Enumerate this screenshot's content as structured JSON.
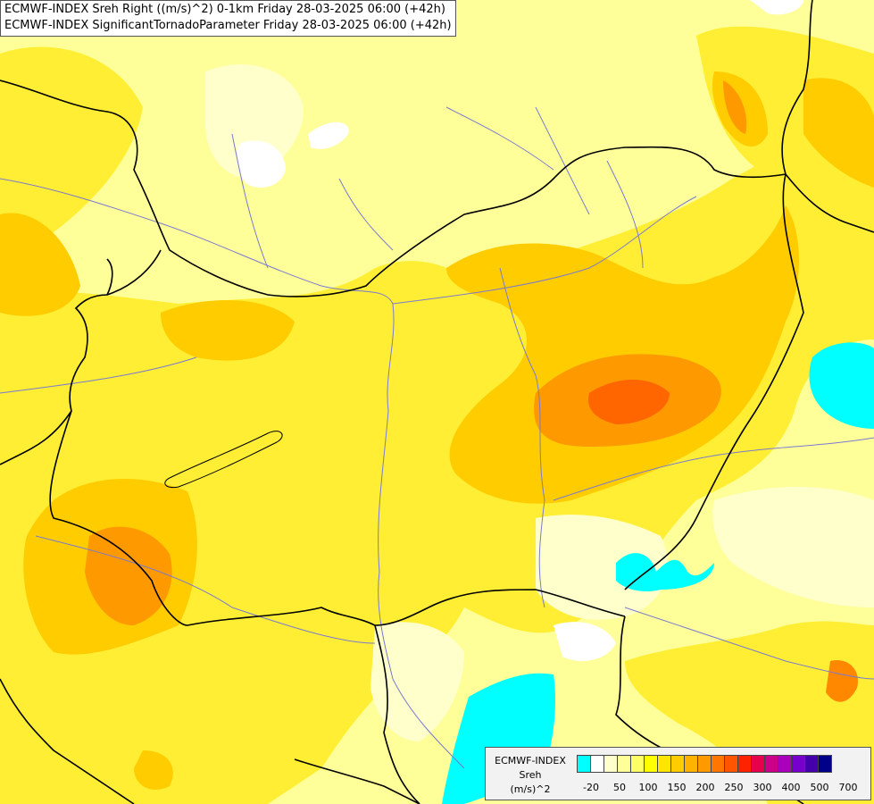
{
  "map": {
    "title_line1": "ECMWF-INDEX Sreh Right ((m/s)^2) 0-1km Friday 28-03-2025 06:00 (+42h)",
    "title_line2": "ECMWF-INDEX SignificantTornadoParameter Friday 28-03-2025 06:00 (+42h)",
    "background_color": "#ffff9a"
  },
  "legend": {
    "model": "ECMWF-INDEX",
    "parameter": "Sreh",
    "unit": "(m/s)^2",
    "colors": [
      "#00ffff",
      "#ffffff",
      "#ffffcc",
      "#ffff99",
      "#ffff66",
      "#ffff00",
      "#ffe600",
      "#ffcc00",
      "#ffb300",
      "#ff9900",
      "#ff7700",
      "#ff5500",
      "#ff2200",
      "#e6004d",
      "#cc0088",
      "#aa00bb",
      "#7700cc",
      "#4400aa",
      "#000088"
    ],
    "tick_labels": [
      "-20",
      "50",
      "100",
      "150",
      "200",
      "250",
      "300",
      "400",
      "500",
      "700"
    ]
  }
}
